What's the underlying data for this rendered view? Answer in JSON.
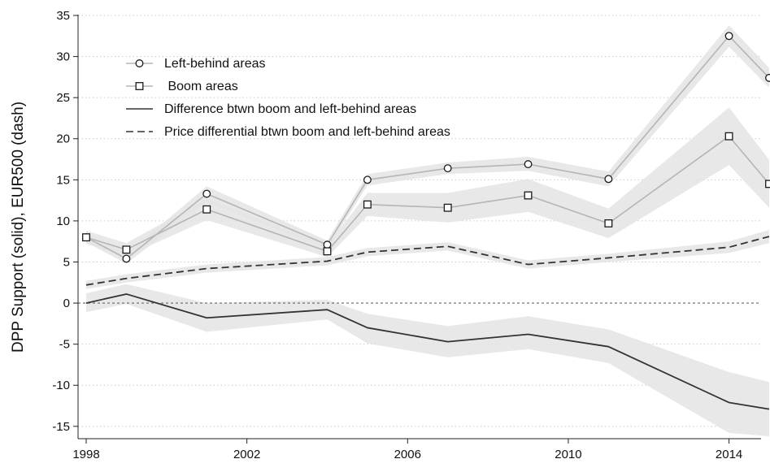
{
  "chart_data": {
    "type": "line",
    "ylabel": "DPP Support (solid), EUR500 (dash)",
    "xlabel": "",
    "xlim": [
      1998,
      2015
    ],
    "ylim": [
      -16.5,
      35
    ],
    "x_ticks": [
      1998,
      2002,
      2006,
      2010,
      2014
    ],
    "y_ticks": [
      -15,
      -10,
      -5,
      0,
      5,
      10,
      15,
      20,
      25,
      30,
      35
    ],
    "grid": "horizontal dotted",
    "reference_line": 0,
    "legend_position": "top-left",
    "series": [
      {
        "name": "Left-behind areas",
        "marker": "circle",
        "color": "#b5b5b5",
        "x": [
          1998,
          1999,
          2001,
          2004,
          2005,
          2007,
          2009,
          2011,
          2014,
          2015
        ],
        "values": [
          8.0,
          5.4,
          13.3,
          7.1,
          15.0,
          16.4,
          16.9,
          15.1,
          32.5,
          27.4
        ],
        "ci_lower": [
          7.4,
          4.8,
          12.3,
          6.6,
          14.3,
          15.7,
          16.1,
          14.2,
          31.2,
          26.2
        ],
        "ci_upper": [
          8.6,
          6.0,
          14.2,
          7.6,
          15.7,
          17.1,
          17.8,
          16.0,
          33.8,
          28.6
        ]
      },
      {
        "name": " Boom areas",
        "marker": "square",
        "color": "#b5b5b5",
        "x": [
          1998,
          1999,
          2001,
          2004,
          2005,
          2007,
          2009,
          2011,
          2014,
          2015
        ],
        "values": [
          8.0,
          6.5,
          11.4,
          6.3,
          12.0,
          11.6,
          13.1,
          9.7,
          20.3,
          14.5
        ],
        "ci_lower": [
          7.2,
          5.7,
          10.1,
          5.6,
          10.6,
          9.8,
          11.1,
          7.9,
          16.8,
          11.6
        ],
        "ci_upper": [
          8.8,
          7.3,
          12.7,
          7.0,
          13.4,
          13.4,
          15.1,
          11.5,
          23.8,
          17.4
        ]
      },
      {
        "name": "Difference btwn boom and left-behind areas",
        "marker": "none",
        "line_style": "solid",
        "color": "#333333",
        "x": [
          1998,
          1999,
          2001,
          2004,
          2005,
          2007,
          2009,
          2011,
          2014,
          2015
        ],
        "values": [
          0.0,
          1.1,
          -1.8,
          -0.8,
          -3.0,
          -4.7,
          -3.8,
          -5.3,
          -12.1,
          -12.9
        ],
        "ci_lower": [
          -1.1,
          -0.1,
          -3.5,
          -2.0,
          -4.9,
          -6.6,
          -5.6,
          -7.3,
          -15.8,
          -16.2
        ],
        "ci_upper": [
          1.2,
          2.3,
          0.0,
          0.4,
          -1.3,
          -2.8,
          -1.6,
          -3.2,
          -8.4,
          -9.6
        ]
      },
      {
        "name": "Price differential btwn boom and left-behind areas",
        "marker": "none",
        "line_style": "dashed",
        "color": "#333333",
        "x": [
          1998,
          1999,
          2001,
          2004,
          2005,
          2007,
          2009,
          2011,
          2014,
          2015
        ],
        "values": [
          2.2,
          3.0,
          4.2,
          5.1,
          6.2,
          6.9,
          4.7,
          5.5,
          6.8,
          8.1
        ],
        "ci_lower": [
          1.7,
          2.5,
          3.7,
          4.6,
          5.7,
          6.4,
          4.2,
          5.0,
          6.1,
          7.3
        ],
        "ci_upper": [
          2.7,
          3.5,
          4.7,
          5.6,
          6.7,
          7.4,
          5.2,
          6.0,
          7.5,
          8.9
        ]
      }
    ]
  }
}
